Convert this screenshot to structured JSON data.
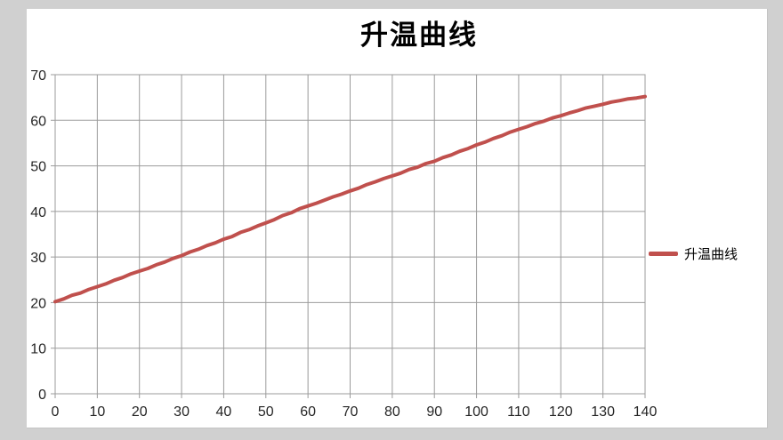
{
  "page": {
    "background_color": "#d0d0d0",
    "panel_color": "#ffffff"
  },
  "chart": {
    "title": "升温曲线",
    "legend": {
      "label": "升温曲线",
      "marker_color": "#c0504d"
    },
    "colors": {
      "series": "#c0504d",
      "gridline": "#9b9b9b",
      "tick_text": "#262626"
    }
  },
  "chart_data": {
    "type": "line",
    "title": "升温曲线",
    "xlabel": "",
    "ylabel": "",
    "xlim": [
      0,
      140
    ],
    "ylim": [
      0,
      70
    ],
    "x_ticks": [
      0,
      10,
      20,
      30,
      40,
      50,
      60,
      70,
      80,
      90,
      100,
      110,
      120,
      130,
      140
    ],
    "y_ticks": [
      0,
      10,
      20,
      30,
      40,
      50,
      60,
      70
    ],
    "grid": true,
    "legend_position": "right",
    "series": [
      {
        "name": "升温曲线",
        "color": "#c0504d",
        "x_start": 0,
        "x_step": 2,
        "values": [
          20.2,
          20.8,
          21.6,
          22.1,
          22.9,
          23.5,
          24.1,
          24.9,
          25.5,
          26.3,
          26.9,
          27.5,
          28.3,
          28.9,
          29.7,
          30.3,
          31.1,
          31.7,
          32.5,
          33.1,
          33.9,
          34.5,
          35.4,
          36.0,
          36.8,
          37.5,
          38.2,
          39.1,
          39.7,
          40.6,
          41.2,
          41.8,
          42.5,
          43.2,
          43.8,
          44.5,
          45.1,
          45.9,
          46.5,
          47.2,
          47.8,
          48.4,
          49.2,
          49.7,
          50.5,
          51.0,
          51.8,
          52.4,
          53.2,
          53.8,
          54.6,
          55.2,
          56.0,
          56.6,
          57.4,
          58.0,
          58.6,
          59.3,
          59.8,
          60.5,
          61.0,
          61.6,
          62.1,
          62.7,
          63.1,
          63.5,
          64.0,
          64.3,
          64.7,
          64.9,
          65.2
        ]
      }
    ]
  }
}
